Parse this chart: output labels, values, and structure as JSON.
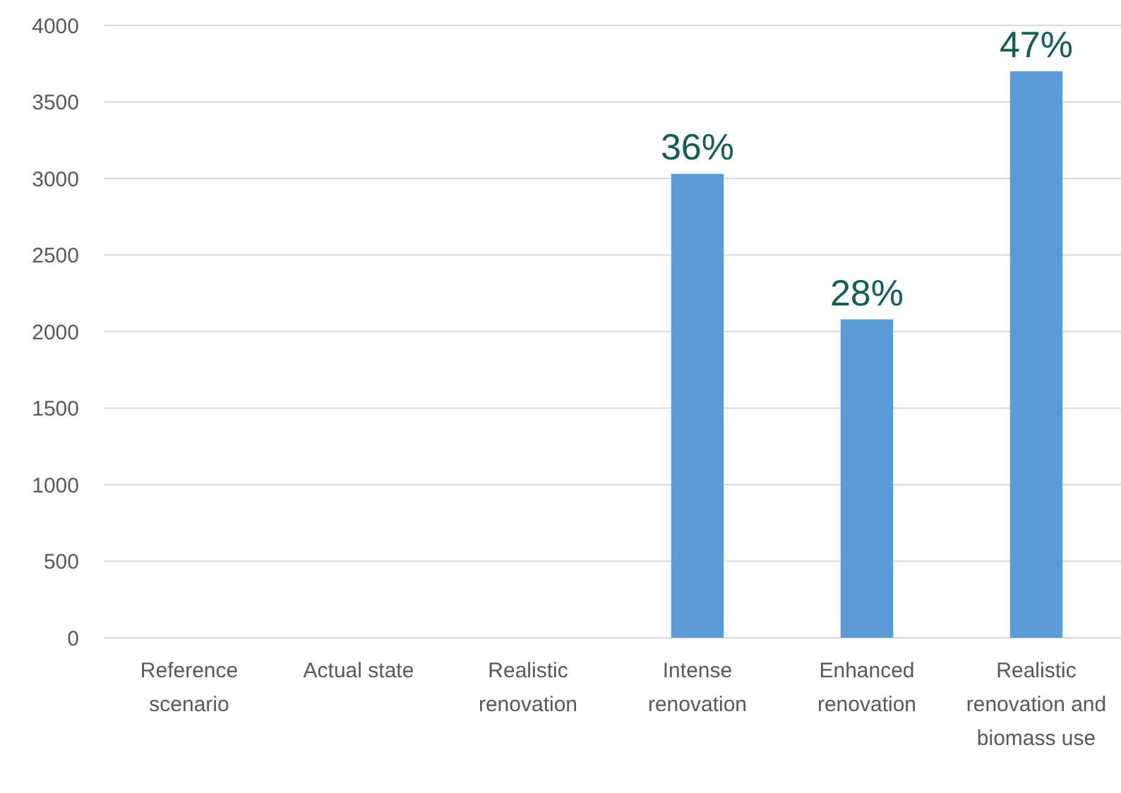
{
  "chart_data": {
    "type": "bar",
    "categories": [
      "Reference scenario",
      "Actual state",
      "Realistic renovation",
      "Intense renovation",
      "Enhanced renovation",
      "Realistic renovation and biomass use"
    ],
    "values": [
      0,
      0,
      0,
      3030,
      2080,
      3700
    ],
    "annotations": [
      {
        "text": "36%",
        "x": "Intense renovation",
        "y": 3030
      },
      {
        "text": "28%",
        "x": "Enhanced renovation",
        "y": 2080
      },
      {
        "text": "47%",
        "x": "Realistic renovation and biomass use",
        "y": 3700
      }
    ],
    "color": "#5b9bd5",
    "ylim": [
      0,
      4000
    ],
    "yticks": [
      0,
      500,
      1000,
      1500,
      2000,
      2500,
      3000,
      3500,
      4000
    ],
    "grid": "y"
  }
}
